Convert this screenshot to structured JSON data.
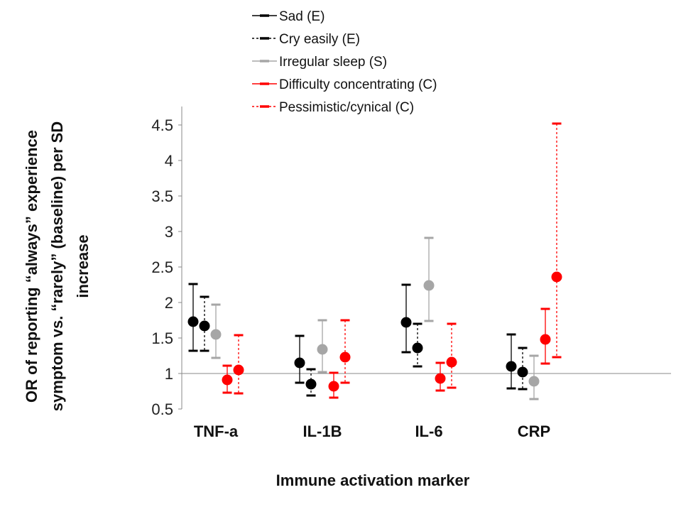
{
  "chart_data": {
    "type": "scatter",
    "title": "",
    "xlabel": "Immune activation marker",
    "ylabel": "OR of reporting “always” experience symptom vs. “rarely” (baseline) per SD increase",
    "ylabel_lines": [
      "OR of reporting “always” experience",
      "symptom vs. “rarely” (baseline) per SD",
      "increase"
    ],
    "ylim": [
      0.5,
      4.5
    ],
    "yticks": [
      0.5,
      1,
      1.5,
      2,
      2.5,
      3,
      3.5,
      4,
      4.5
    ],
    "ytick_labels": [
      "0.5",
      "1",
      "1.5",
      "2",
      "2.5",
      "3",
      "3.5",
      "4",
      "4.5"
    ],
    "reference_line": 1,
    "categories": [
      "TNF-a",
      "IL-1B",
      "IL-6",
      "CRP"
    ],
    "legend_position": "top-center",
    "series": [
      {
        "name": "Sad (E)",
        "color": "#000000",
        "dashed": false,
        "values": [
          1.73,
          1.15,
          1.72,
          1.1
        ],
        "lower": [
          1.32,
          0.87,
          1.3,
          0.79
        ],
        "upper": [
          2.26,
          1.53,
          2.25,
          1.55
        ]
      },
      {
        "name": "Cry easily (E)",
        "color": "#000000",
        "dashed": true,
        "values": [
          1.67,
          0.85,
          1.36,
          1.02
        ],
        "lower": [
          1.32,
          0.69,
          1.1,
          0.78
        ],
        "upper": [
          2.08,
          1.06,
          1.7,
          1.36
        ]
      },
      {
        "name": "Irregular sleep (S)",
        "color": "#a6a6a6",
        "dashed": false,
        "values": [
          1.55,
          1.34,
          2.24,
          0.89
        ],
        "lower": [
          1.22,
          1.02,
          1.74,
          0.64
        ],
        "upper": [
          1.97,
          1.75,
          2.91,
          1.25
        ]
      },
      {
        "name": "Difficulty concentrating (C)",
        "color": "#ff0000",
        "dashed": false,
        "values": [
          0.91,
          0.82,
          0.93,
          1.48
        ],
        "lower": [
          0.73,
          0.66,
          0.76,
          1.14
        ],
        "upper": [
          1.11,
          1.01,
          1.15,
          1.91
        ]
      },
      {
        "name": "Pessimistic/cynical (C)",
        "color": "#ff0000",
        "dashed": true,
        "values": [
          1.05,
          1.23,
          1.16,
          2.36
        ],
        "lower": [
          0.72,
          0.87,
          0.8,
          1.23
        ],
        "upper": [
          1.54,
          1.75,
          1.7,
          4.52
        ]
      }
    ]
  }
}
